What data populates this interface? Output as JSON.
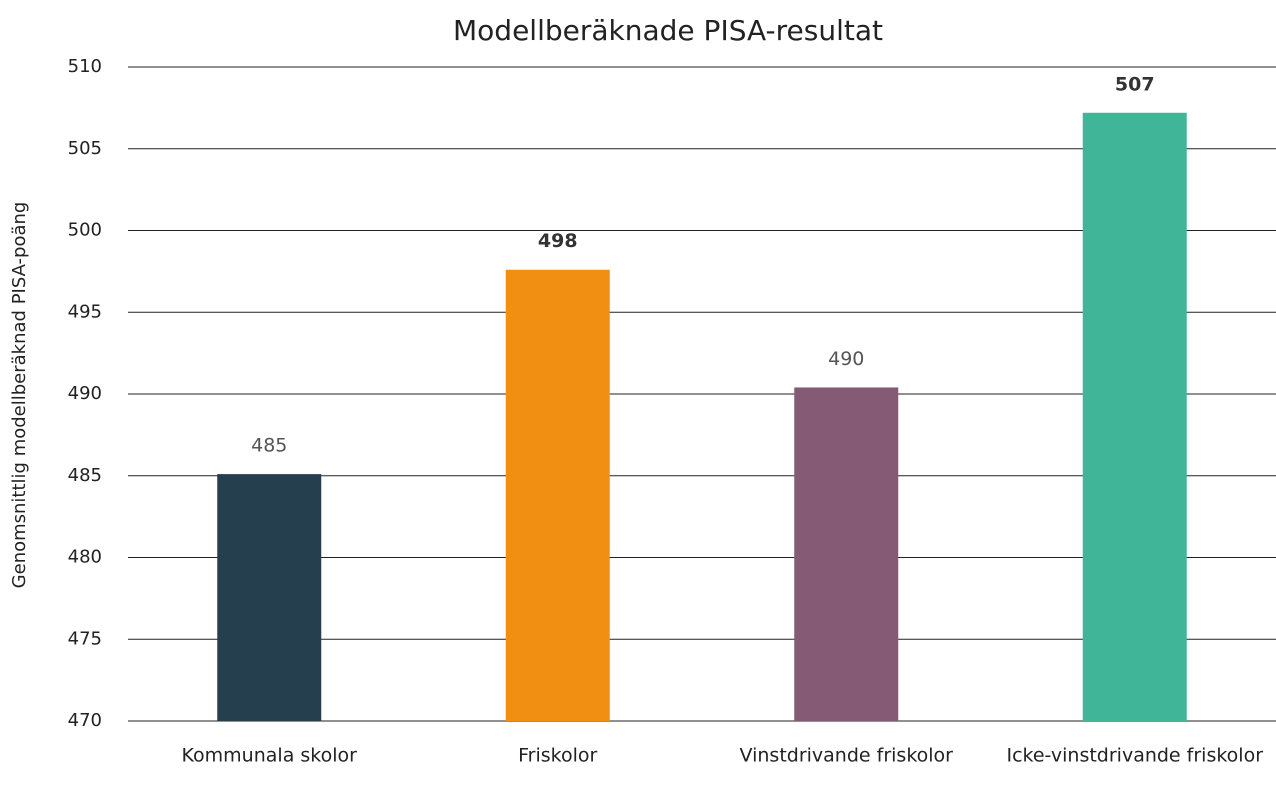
{
  "chart_data": {
    "type": "bar",
    "title": "Modellberäknade PISA-resultat",
    "y_label": "Genomsnittlig modellberäknad PISA-poäng",
    "categories": [
      "Kommunala skolor",
      "Friskolor",
      "Vinstdrivande friskolor",
      "Icke-vinstdrivande friskolor"
    ],
    "values": [
      485.1,
      497.6,
      490.4,
      507.2
    ],
    "value_labels": [
      "485",
      "498",
      "490",
      "507"
    ],
    "bold_labels": [
      false,
      true,
      false,
      true
    ],
    "colors": [
      "#263f4e",
      "#f08f12",
      "#845a75",
      "#40b597"
    ],
    "ylim": [
      470,
      510
    ],
    "yticks": [
      470,
      475,
      480,
      485,
      490,
      495,
      500,
      505,
      510
    ],
    "grid": true
  }
}
